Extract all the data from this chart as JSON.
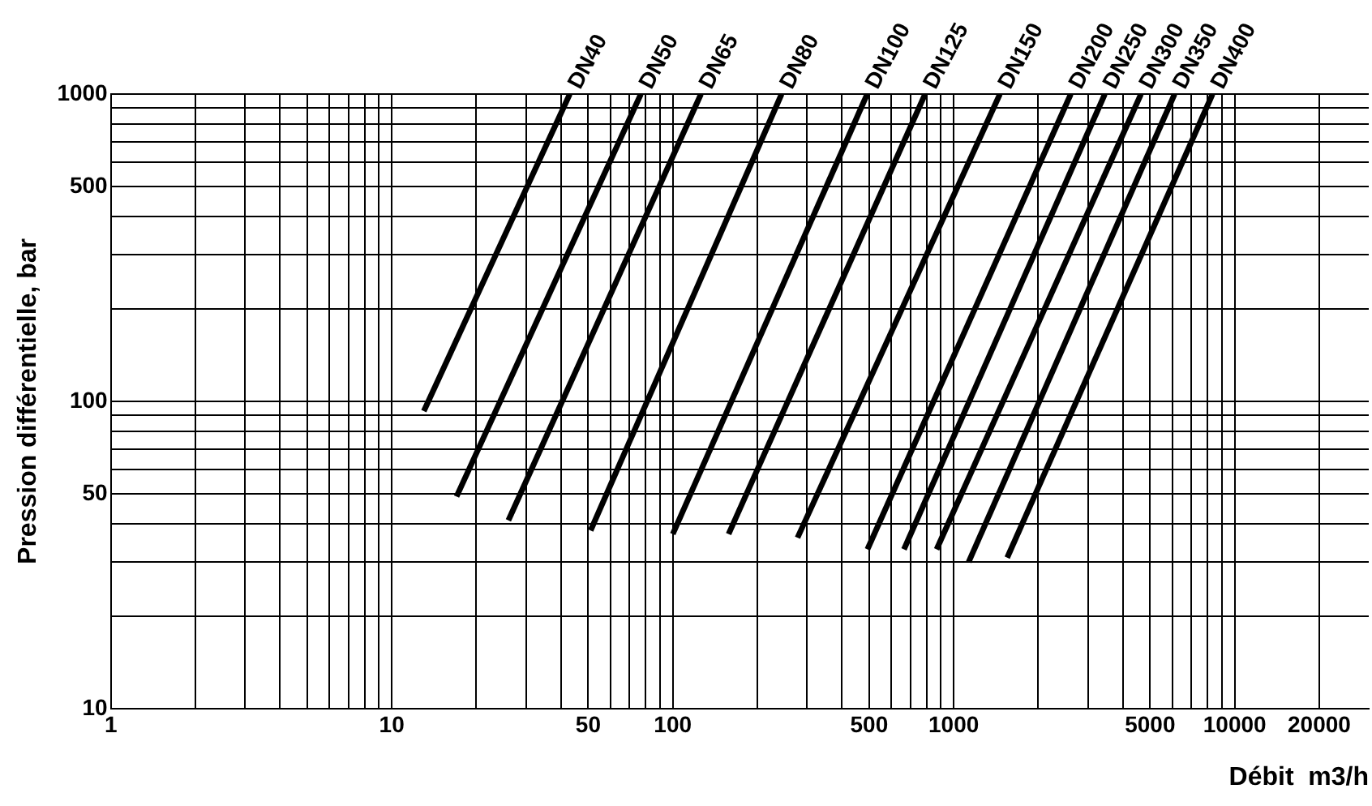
{
  "chart_data": {
    "type": "line",
    "xlabel": "Débit  m3/h",
    "ylabel": "Pression différentielle, bar",
    "log": "xy",
    "grid": true,
    "legend": false,
    "marker": "none",
    "line_style": "solid",
    "xlim": [
      1,
      30000
    ],
    "ylim": [
      10,
      1000
    ],
    "xticks": [
      1,
      {
        "value": 2,
        "label": null
      },
      {
        "value": 3,
        "label": null
      },
      {
        "value": 4,
        "label": null
      },
      {
        "value": 5,
        "label": null
      },
      {
        "value": 6,
        "label": null
      },
      {
        "value": 7,
        "label": null
      },
      {
        "value": 8,
        "label": null
      },
      {
        "value": 9,
        "label": null
      },
      10,
      {
        "value": 20,
        "label": null
      },
      {
        "value": 30,
        "label": null
      },
      {
        "value": 40,
        "label": null
      },
      50,
      {
        "value": 60,
        "label": null
      },
      {
        "value": 70,
        "label": null
      },
      {
        "value": 80,
        "label": null
      },
      {
        "value": 90,
        "label": null
      },
      100,
      {
        "value": 200,
        "label": null
      },
      {
        "value": 300,
        "label": null
      },
      {
        "value": 400,
        "label": null
      },
      500,
      {
        "value": 600,
        "label": null
      },
      {
        "value": 700,
        "label": null
      },
      {
        "value": 800,
        "label": null
      },
      {
        "value": 900,
        "label": null
      },
      1000,
      {
        "value": 2000,
        "label": null
      },
      {
        "value": 3000,
        "label": null
      },
      {
        "value": 4000,
        "label": null
      },
      5000,
      {
        "value": 6000,
        "label": null
      },
      {
        "value": 7000,
        "label": null
      },
      {
        "value": 8000,
        "label": null
      },
      {
        "value": 9000,
        "label": null
      },
      10000,
      20000
    ],
    "yticks": [
      10,
      {
        "value": 20,
        "label": null
      },
      {
        "value": 30,
        "label": null
      },
      {
        "value": 40,
        "label": null
      },
      50,
      {
        "value": 60,
        "label": null
      },
      {
        "value": 70,
        "label": null
      },
      {
        "value": 80,
        "label": null
      },
      {
        "value": 90,
        "label": null
      },
      100,
      {
        "value": 200,
        "label": null
      },
      {
        "value": 300,
        "label": null
      },
      {
        "value": 400,
        "label": null
      },
      500,
      {
        "value": 600,
        "label": null
      },
      {
        "value": 700,
        "label": null
      },
      {
        "value": 800,
        "label": null
      },
      {
        "value": 900,
        "label": null
      },
      1000
    ],
    "series": [
      {
        "name": "DN40",
        "color": "#000000",
        "x": [
          13,
          43
        ],
        "values": [
          93,
          1000
        ]
      },
      {
        "name": "DN50",
        "color": "#000000",
        "x": [
          17,
          77
        ],
        "values": [
          49,
          1000
        ]
      },
      {
        "name": "DN65",
        "color": "#000000",
        "x": [
          26,
          126
        ],
        "values": [
          41,
          1000
        ]
      },
      {
        "name": "DN80",
        "color": "#000000",
        "x": [
          51,
          244
        ],
        "values": [
          38,
          1000
        ]
      },
      {
        "name": "DN100",
        "color": "#000000",
        "x": [
          100,
          492
        ],
        "values": [
          37,
          1000
        ]
      },
      {
        "name": "DN125",
        "color": "#000000",
        "x": [
          158,
          791
        ],
        "values": [
          37,
          1000
        ]
      },
      {
        "name": "DN150",
        "color": "#000000",
        "x": [
          278,
          1460
        ],
        "values": [
          36,
          1000
        ]
      },
      {
        "name": "DN200",
        "color": "#000000",
        "x": [
          493,
          2610
        ],
        "values": [
          33,
          1000
        ]
      },
      {
        "name": "DN250",
        "color": "#000000",
        "x": [
          665,
          3450
        ],
        "values": [
          33,
          1000
        ]
      },
      {
        "name": "DN300",
        "color": "#000000",
        "x": [
          869,
          4640
        ],
        "values": [
          33,
          1000
        ]
      },
      {
        "name": "DN350",
        "color": "#000000",
        "x": [
          1130,
          6110
        ],
        "values": [
          30,
          1000
        ]
      },
      {
        "name": "DN400",
        "color": "#000000",
        "x": [
          1550,
          8340
        ],
        "values": [
          31,
          1000
        ]
      }
    ]
  }
}
